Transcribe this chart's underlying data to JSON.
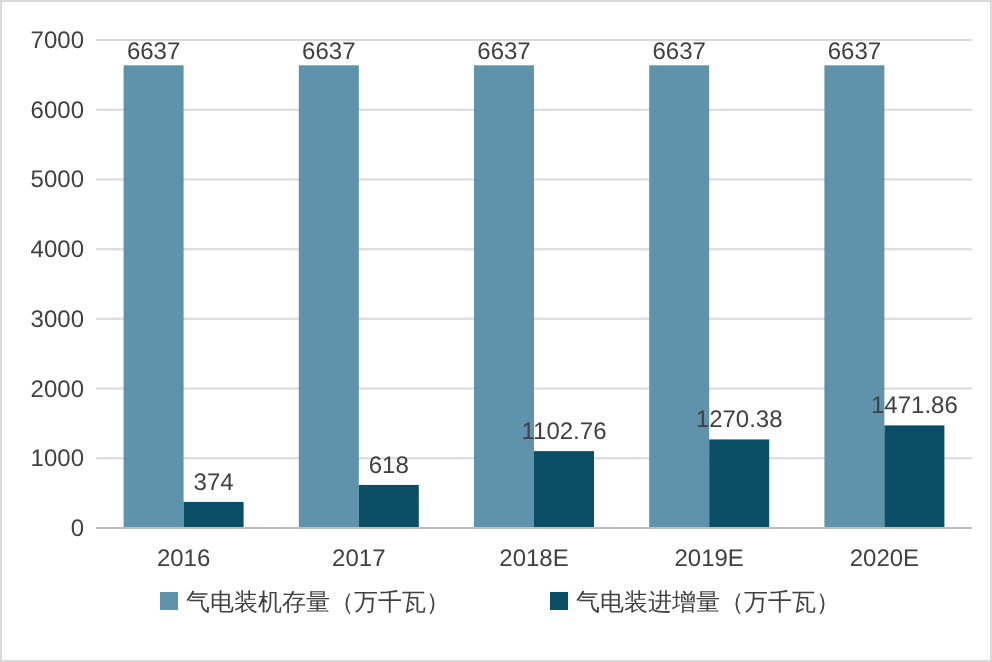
{
  "chart_data": {
    "type": "bar",
    "categories": [
      "2016",
      "2017",
      "2018E",
      "2019E",
      "2020E"
    ],
    "series": [
      {
        "name": "气电装机存量（万千瓦）",
        "color": "#5f93ab",
        "values": [
          6637,
          6637,
          6637,
          6637,
          6637
        ]
      },
      {
        "name": "气电装进增量（万千瓦）",
        "color": "#0b4f66",
        "values": [
          374,
          618,
          1102.76,
          1270.38,
          1471.86
        ]
      }
    ],
    "ylim": [
      0,
      7000
    ],
    "yticks": [
      0,
      1000,
      2000,
      3000,
      4000,
      5000,
      6000,
      7000
    ],
    "grid": "y",
    "legend": "bottom",
    "data_labels": true
  }
}
